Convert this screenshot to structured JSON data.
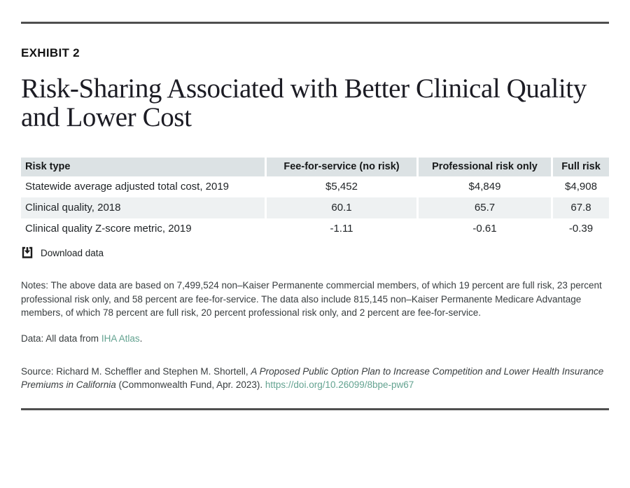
{
  "exhibit_label": "EXHIBIT 2",
  "title": "Risk-Sharing Associated with Better Clinical Quality and Lower Cost",
  "chart_data": {
    "type": "table",
    "columns": [
      "Risk type",
      "Fee-for-service (no risk)",
      "Professional risk only",
      "Full risk"
    ],
    "rows": [
      {
        "label": "Statewide average adjusted total cost, 2019",
        "values": [
          "$5,452",
          "$4,849",
          "$4,908"
        ]
      },
      {
        "label": "Clinical quality, 2018",
        "values": [
          "60.1",
          "65.7",
          "67.8"
        ]
      },
      {
        "label": "Clinical quality Z-score metric, 2019",
        "values": [
          "-1.11",
          "-0.61",
          "-0.39"
        ]
      }
    ]
  },
  "download": {
    "label": "Download data"
  },
  "notes": "Notes: The above data are based on 7,499,524 non–Kaiser Permanente commercial members, of which 19 percent are full risk, 23 percent professional risk only, and 58 percent are fee-for-service. The data also include 815,145 non–Kaiser Permanente Medicare Advantage members, of which 78 percent are full risk, 20 percent professional risk only, and 2 percent are fee-for-service.",
  "data_line": {
    "prefix": "Data: All data from ",
    "link": "IHA Atlas",
    "suffix": "."
  },
  "source": {
    "prefix": "Source: Richard M. Scheffler and Stephen M. Shortell, ",
    "italic": "A Proposed Public Option Plan to Increase Competition and Lower Health Insurance Premiums in California",
    "middle": " (Commonwealth Fund, Apr. 2023). ",
    "link": "https://doi.org/10.26099/8bpe-pw67"
  },
  "colors": {
    "accent_link": "#64a391",
    "table_header_bg": "#dce2e4",
    "table_alt_row_bg": "#eef1f2",
    "rule": "#4f4f4f"
  }
}
